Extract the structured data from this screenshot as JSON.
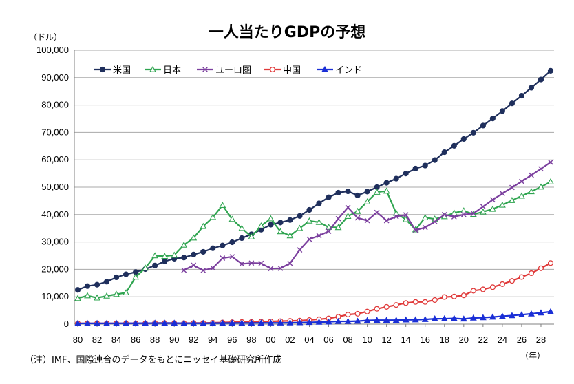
{
  "chart_data": {
    "type": "line",
    "title": "一人当たりGDPの予想",
    "y_unit_label": "（ドル）",
    "x_unit_label": "（年）",
    "note": "（注）IMF、国際連合のデータをもとにニッセイ基礎研究所作成",
    "ylim": [
      0,
      100000
    ],
    "y_ticks": [
      0,
      10000,
      20000,
      30000,
      40000,
      50000,
      60000,
      70000,
      80000,
      90000,
      100000
    ],
    "y_tick_labels": [
      "0",
      "10,000",
      "20,000",
      "30,000",
      "40,000",
      "50,000",
      "60,000",
      "70,000",
      "80,000",
      "90,000",
      "100,000"
    ],
    "x": [
      "1980",
      "1981",
      "1982",
      "1983",
      "1984",
      "1985",
      "1986",
      "1987",
      "1988",
      "1989",
      "1990",
      "1991",
      "1992",
      "1993",
      "1994",
      "1995",
      "1996",
      "1997",
      "1998",
      "1999",
      "2000",
      "2001",
      "2002",
      "2003",
      "2004",
      "2005",
      "2006",
      "2007",
      "2008",
      "2009",
      "2010",
      "2011",
      "2012",
      "2013",
      "2014",
      "2015",
      "2016",
      "2017",
      "2018",
      "2019",
      "2020",
      "2021",
      "2022",
      "2023",
      "2024",
      "2025",
      "2026",
      "2027",
      "2028",
      "2029"
    ],
    "x_tick_labels": [
      "80",
      "82",
      "84",
      "86",
      "88",
      "90",
      "92",
      "94",
      "96",
      "98",
      "00",
      "02",
      "04",
      "06",
      "08",
      "10",
      "12",
      "14",
      "16",
      "18",
      "20",
      "22",
      "24",
      "26",
      "28"
    ],
    "grid": "horizontal",
    "legend_position": "top-left",
    "series": [
      {
        "name": "米国",
        "color": "#1f2f5c",
        "marker": "filled-circle",
        "values": [
          12500,
          13900,
          14400,
          15500,
          17100,
          18200,
          19000,
          20100,
          21400,
          22900,
          23900,
          24300,
          25400,
          26400,
          27700,
          28700,
          29900,
          31400,
          32800,
          34500,
          36300,
          37100,
          38000,
          39500,
          41700,
          44100,
          46300,
          48000,
          48500,
          47000,
          48400,
          50000,
          51600,
          53100,
          55000,
          56800,
          57900,
          59900,
          62800,
          65100,
          67600,
          69900,
          72500,
          75100,
          77800,
          80600,
          83400,
          86300,
          89300,
          92500
        ]
      },
      {
        "name": "日本",
        "color": "#2ea44f",
        "marker": "open-triangle",
        "values": [
          9400,
          10400,
          9600,
          10300,
          10900,
          11500,
          17200,
          20500,
          25000,
          24800,
          25200,
          28900,
          31500,
          35700,
          39000,
          43400,
          38300,
          35000,
          31900,
          35900,
          38500,
          33800,
          32300,
          35000,
          37700,
          37200,
          35400,
          35300,
          39400,
          41200,
          44700,
          48200,
          48600,
          40500,
          38200,
          34500,
          38900,
          38400,
          39300,
          40600,
          41400,
          40100,
          41000,
          42000,
          43500,
          45200,
          46800,
          48400,
          50100,
          52000
        ]
      },
      {
        "name": "ユーロ圏",
        "color": "#7b3f9e",
        "marker": "cross",
        "values": [
          null,
          null,
          null,
          null,
          null,
          null,
          null,
          null,
          null,
          null,
          null,
          19700,
          21500,
          19600,
          20500,
          24100,
          24600,
          22000,
          22300,
          22200,
          20300,
          20400,
          22200,
          27100,
          31000,
          32300,
          33900,
          38500,
          42600,
          38800,
          37800,
          40800,
          37800,
          39300,
          39900,
          34300,
          35300,
          37400,
          40000,
          39200,
          40000,
          40400,
          42900,
          45400,
          47700,
          49900,
          52100,
          54400,
          56700,
          59100
        ]
      },
      {
        "name": "中国",
        "color": "#e03a3a",
        "marker": "open-circle",
        "values": [
          300,
          300,
          300,
          300,
          300,
          300,
          300,
          300,
          400,
          400,
          350,
          350,
          400,
          400,
          500,
          600,
          700,
          800,
          800,
          900,
          1000,
          1100,
          1200,
          1300,
          1500,
          1800,
          2100,
          2700,
          3500,
          3800,
          4600,
          5600,
          6300,
          7000,
          7700,
          8100,
          8100,
          8800,
          9900,
          10100,
          10500,
          12200,
          12700,
          13500,
          14600,
          15800,
          17200,
          18600,
          20400,
          22300
        ]
      },
      {
        "name": "インド",
        "color": "#1a2fd6",
        "marker": "filled-triangle",
        "values": [
          270,
          280,
          290,
          300,
          300,
          310,
          320,
          340,
          360,
          370,
          380,
          310,
          330,
          320,
          350,
          380,
          400,
          420,
          420,
          450,
          460,
          460,
          490,
          560,
          650,
          740,
          810,
          1020,
          990,
          1100,
          1350,
          1460,
          1440,
          1440,
          1560,
          1610,
          1730,
          1980,
          2000,
          2100,
          1910,
          2260,
          2390,
          2610,
          2900,
          3150,
          3450,
          3780,
          4150,
          4550
        ]
      }
    ]
  }
}
